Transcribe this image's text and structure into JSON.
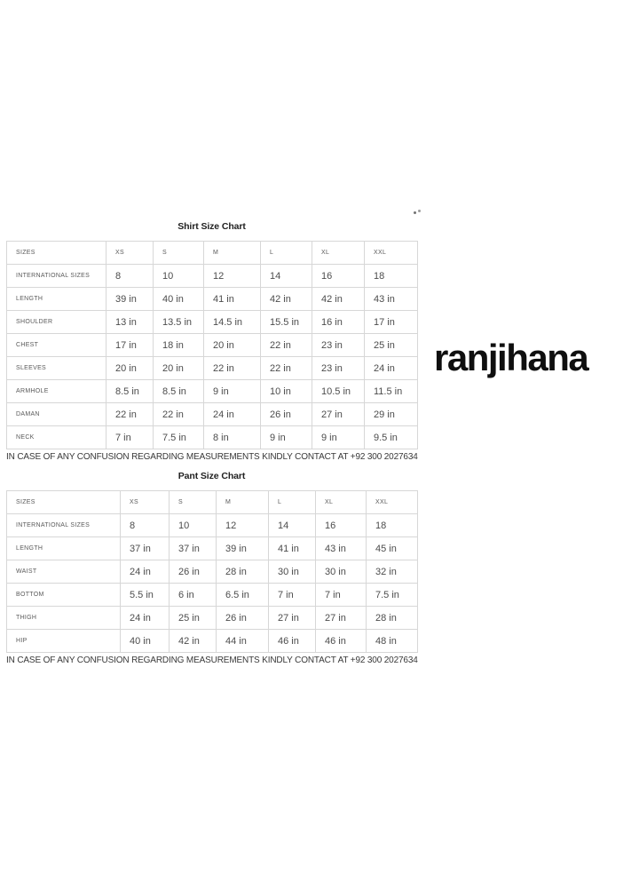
{
  "brand": {
    "name": "ranjihana"
  },
  "shirt_chart": {
    "title": "Shirt Size Chart",
    "columns": [
      "SIZES",
      "XS",
      "S",
      "M",
      "L",
      "XL",
      "XXL"
    ],
    "rows": [
      {
        "label": "INTERNATIONAL SIZES",
        "values": [
          "8",
          "10",
          "12",
          "14",
          "16",
          "18"
        ]
      },
      {
        "label": "LENGTH",
        "values": [
          "39 in",
          "40 in",
          "41 in",
          "42 in",
          "42 in",
          "43 in"
        ]
      },
      {
        "label": "SHOULDER",
        "values": [
          "13 in",
          "13.5 in",
          "14.5 in",
          "15.5 in",
          "16 in",
          "17 in"
        ]
      },
      {
        "label": "CHEST",
        "values": [
          "17 in",
          "18 in",
          "20 in",
          "22 in",
          "23 in",
          "25 in"
        ]
      },
      {
        "label": "SLEEVES",
        "values": [
          "20 in",
          "20 in",
          "22 in",
          "22 in",
          "23 in",
          "24 in"
        ]
      },
      {
        "label": "ARMHOLE",
        "values": [
          "8.5 in",
          "8.5 in",
          "9 in",
          "10 in",
          "10.5 in",
          "11.5 in"
        ]
      },
      {
        "label": "DAMAN",
        "values": [
          "22 in",
          "22 in",
          "24 in",
          "26 in",
          "27 in",
          "29 in"
        ]
      },
      {
        "label": "NECK",
        "values": [
          "7 in",
          "7.5 in",
          "8 in",
          "9 in",
          "9 in",
          "9.5 in"
        ]
      }
    ],
    "footnote": "IN CASE OF ANY CONFUSION REGARDING MEASUREMENTS KINDLY CONTACT AT +92 300 2027634"
  },
  "pant_chart": {
    "title": "Pant Size Chart",
    "columns": [
      "SIZES",
      "XS",
      "S",
      "M",
      "L",
      "XL",
      "XXL"
    ],
    "rows": [
      {
        "label": "INTERNATIONAL SIZES",
        "values": [
          "8",
          "10",
          "12",
          "14",
          "16",
          "18"
        ]
      },
      {
        "label": "LENGTH",
        "values": [
          "37 in",
          "37 in",
          "39 in",
          "41 in",
          "43 in",
          "45 in"
        ]
      },
      {
        "label": "WAIST",
        "values": [
          "24 in",
          "26 in",
          "28 in",
          "30 in",
          "30 in",
          "32 in"
        ]
      },
      {
        "label": "BOTTOM",
        "values": [
          "5.5 in",
          "6 in",
          "6.5 in",
          "7 in",
          "7 in",
          "7.5 in"
        ]
      },
      {
        "label": "THIGH",
        "values": [
          "24 in",
          "25 in",
          "26 in",
          "27 in",
          "27 in",
          "28 in"
        ]
      },
      {
        "label": "HIP",
        "values": [
          "40 in",
          "42 in",
          "44 in",
          "46 in",
          "46 in",
          "48 in"
        ]
      }
    ],
    "footnote": "IN CASE OF ANY CONFUSION REGARDING MEASUREMENTS KINDLY CONTACT AT +92 300 2027634"
  },
  "colors": {
    "page_background": "#ffffff",
    "table_border": "#d7d7d7",
    "label_text": "#5a5a5a",
    "value_text": "#4c4c4c",
    "title_text": "#212121",
    "footnote_text": "#383838",
    "brand_text": "#0f0f0f"
  }
}
